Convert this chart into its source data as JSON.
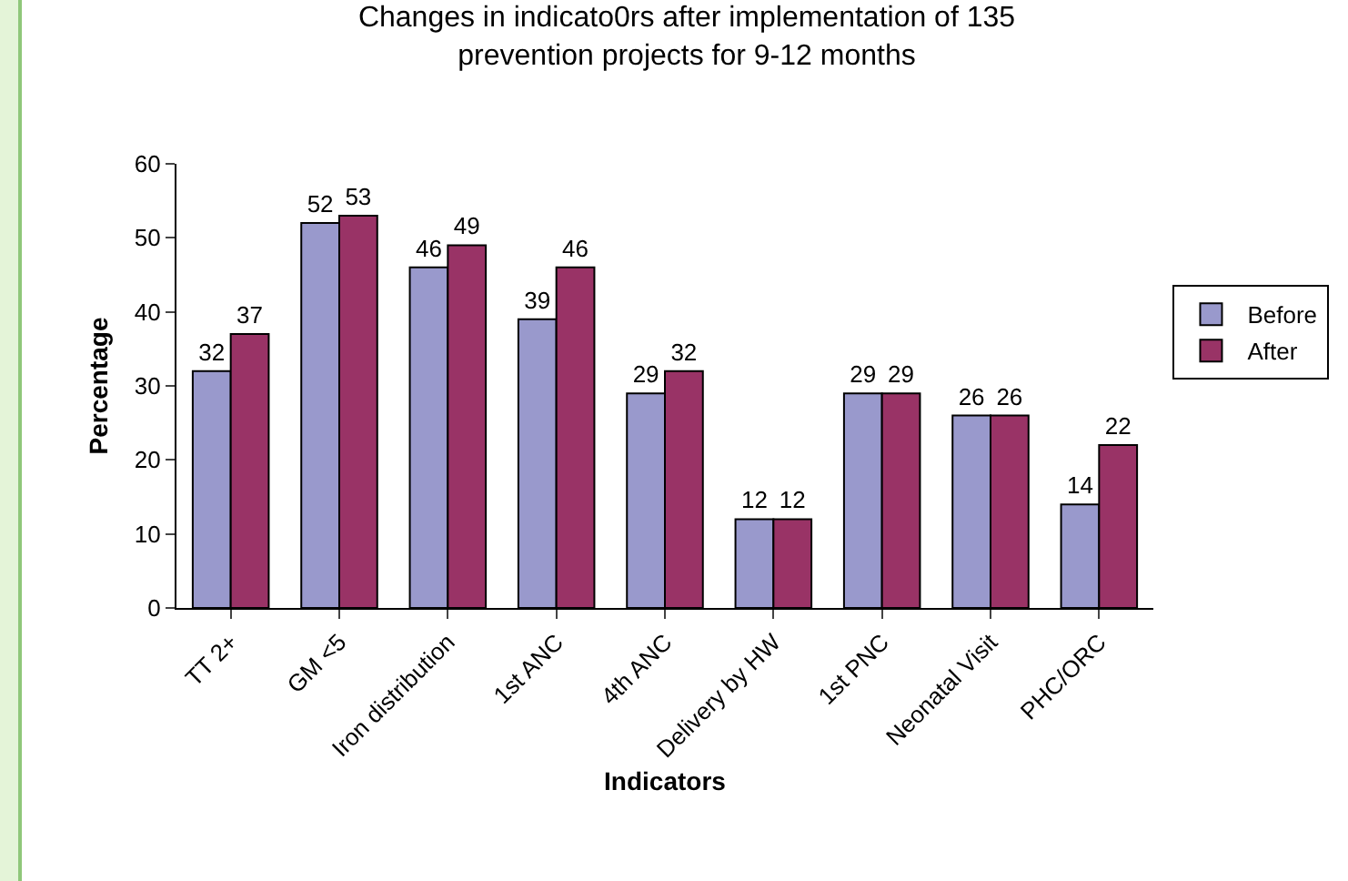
{
  "chart_data": {
    "type": "bar",
    "title": "Changes in indicato0rs after implementation of 135\nprevention projects for 9-12 months",
    "xlabel": "Indicators",
    "ylabel": "Percentage",
    "categories": [
      "TT 2+",
      "GM <5",
      "Iron distribution",
      "1st ANC",
      "4th ANC",
      "Delivery by HW",
      "1st PNC",
      "Neonatal Visit",
      "PHC/ORC"
    ],
    "series": [
      {
        "name": "Before",
        "color": "#9999cc",
        "values": [
          32,
          52,
          46,
          39,
          29,
          12,
          29,
          26,
          14
        ]
      },
      {
        "name": "After",
        "color": "#993366",
        "values": [
          37,
          53,
          49,
          46,
          32,
          12,
          29,
          26,
          22
        ]
      }
    ],
    "ylim": [
      0,
      60
    ],
    "yticks": [
      0,
      10,
      20,
      30,
      40,
      50,
      60
    ],
    "grid": false,
    "legend": "right",
    "data_labels": true
  }
}
